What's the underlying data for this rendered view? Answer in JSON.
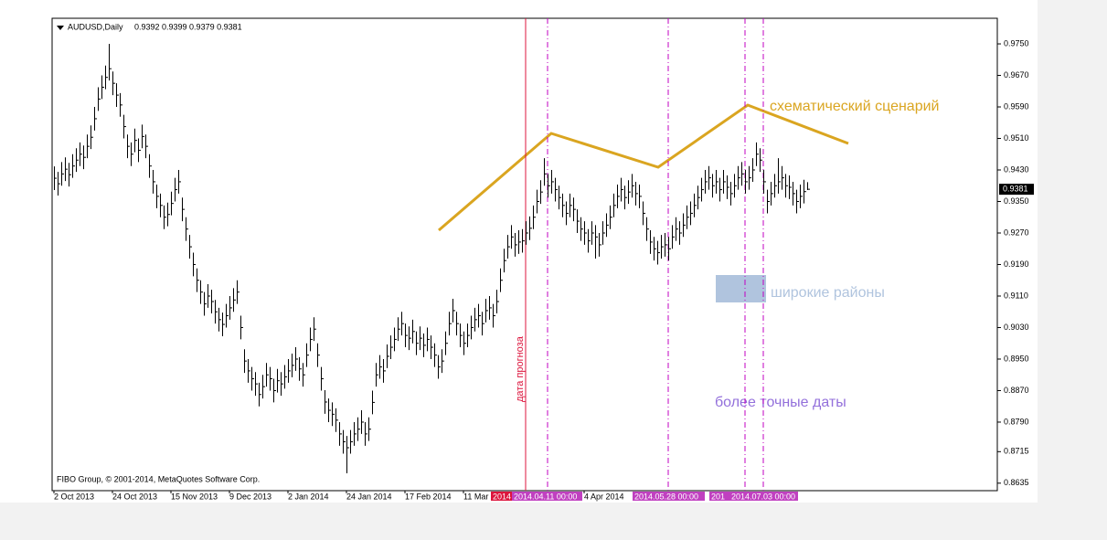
{
  "chart_data": {
    "type": "ohlc",
    "symbol": "AUDUSD,Daily",
    "quote": "0.9392 0.9399 0.9379 0.9381",
    "copyright": "FIBO Group, © 2001-2014, MetaQuotes Software Corp.",
    "annotations": {
      "scenario": "схематический сценарий",
      "zones": "широкие районы",
      "dates": "более точные даты",
      "forecast": "дата прогноза"
    },
    "date_tags": [
      "2014",
      "2014.04.11 00:00",
      "2014.05.28 00:00",
      "201",
      "2014.07.03 00:00"
    ],
    "color": "#000000",
    "ylim": [
      0.8616,
      0.9815
    ],
    "yticks": [
      {
        "value": 0.975,
        "label": "0.9750"
      },
      {
        "value": 0.967,
        "label": "0.9670"
      },
      {
        "value": 0.959,
        "label": "0.9590"
      },
      {
        "value": 0.951,
        "label": "0.9510"
      },
      {
        "value": 0.943,
        "label": "0.9430"
      },
      {
        "value": 0.935,
        "label": "0.9350"
      },
      {
        "value": 0.927,
        "label": "0.9270"
      },
      {
        "value": 0.919,
        "label": "0.9190"
      },
      {
        "value": 0.911,
        "label": "0.9110"
      },
      {
        "value": 0.903,
        "label": "0.9030"
      },
      {
        "value": 0.895,
        "label": "0.8950"
      },
      {
        "value": 0.887,
        "label": "0.8870"
      },
      {
        "value": 0.879,
        "label": "0.8790"
      },
      {
        "value": 0.8715,
        "label": "0.8715"
      },
      {
        "value": 0.8635,
        "label": "0.8635"
      }
    ],
    "categories": [
      "2 Oct 2013",
      null,
      null,
      null,
      null,
      null,
      null,
      null,
      null,
      null,
      null,
      null,
      null,
      null,
      null,
      null,
      "24 Oct 2013",
      null,
      null,
      null,
      null,
      null,
      null,
      null,
      null,
      null,
      null,
      null,
      null,
      null,
      null,
      null,
      "15 Nov 2013",
      null,
      null,
      null,
      null,
      null,
      null,
      null,
      null,
      null,
      null,
      null,
      null,
      null,
      null,
      null,
      "9 Dec 2013",
      null,
      null,
      null,
      null,
      null,
      null,
      null,
      null,
      null,
      null,
      null,
      null,
      null,
      null,
      null,
      "2 Jan 2014",
      null,
      null,
      null,
      null,
      null,
      null,
      null,
      null,
      null,
      null,
      null,
      null,
      null,
      null,
      null,
      "24 Jan 2014",
      null,
      null,
      null,
      null,
      null,
      null,
      null,
      null,
      null,
      null,
      null,
      null,
      null,
      null,
      null,
      "17 Feb 2014",
      null,
      null,
      null,
      null,
      null,
      null,
      null,
      null,
      null,
      null,
      null,
      null,
      null,
      null,
      null,
      "11 Mar",
      null,
      null,
      null,
      null,
      null,
      null,
      null,
      null,
      null,
      null,
      null,
      null,
      null,
      null,
      null,
      null,
      null,
      null,
      null,
      null,
      null,
      null,
      null,
      null,
      null,
      null,
      null,
      null,
      null,
      null,
      null,
      null,
      "4 Apr 2014",
      null,
      null,
      null,
      null,
      null,
      null,
      null,
      null,
      null,
      null,
      null,
      null,
      null,
      null,
      null,
      null,
      null,
      null,
      null,
      null,
      null,
      null,
      null,
      null,
      null,
      null,
      null,
      null,
      null,
      null,
      null,
      null,
      null,
      null,
      null,
      null,
      null,
      null,
      null,
      null,
      null,
      null,
      null,
      null,
      null,
      null,
      null,
      null,
      null,
      null,
      null,
      null,
      null,
      null,
      null,
      null,
      null,
      null,
      null,
      null,
      null
    ],
    "close": [
      0.9409,
      0.9395,
      0.942,
      0.9432,
      0.9418,
      0.944,
      0.9455,
      0.947,
      0.9462,
      0.949,
      0.9513,
      0.956,
      0.961,
      0.964,
      0.9665,
      0.9687,
      0.965,
      0.962,
      0.9595,
      0.954,
      0.949,
      0.947,
      0.9505,
      0.948,
      0.9515,
      0.949,
      0.944,
      0.94,
      0.9363,
      0.934,
      0.931,
      0.9317,
      0.9345,
      0.938,
      0.94,
      0.933,
      0.928,
      0.9235,
      0.919,
      0.915,
      0.912,
      0.909,
      0.911,
      0.9096,
      0.907,
      0.905,
      0.9038,
      0.906,
      0.908,
      0.91,
      0.912,
      0.903,
      0.8945,
      0.892,
      0.89,
      0.8887,
      0.886,
      0.888,
      0.891,
      0.89,
      0.887,
      0.8895,
      0.8887,
      0.8905,
      0.892,
      0.8934,
      0.895,
      0.8925,
      0.891,
      0.896,
      0.9,
      0.9026,
      0.896,
      0.89,
      0.8841,
      0.882,
      0.881,
      0.8795,
      0.876,
      0.874,
      0.8725,
      0.874,
      0.876,
      0.8772,
      0.879,
      0.876,
      0.8772,
      0.884,
      0.891,
      0.893,
      0.892,
      0.8957,
      0.898,
      0.9,
      0.9026,
      0.904,
      0.901,
      0.9003,
      0.902,
      0.899,
      0.9003,
      0.8985,
      0.9,
      0.898,
      0.896,
      0.893,
      0.8945,
      0.899,
      0.904,
      0.9073,
      0.904,
      0.901,
      0.899,
      0.901,
      0.903,
      0.905,
      0.906,
      0.904,
      0.9073,
      0.908,
      0.906,
      0.9096,
      0.915,
      0.92,
      0.9235,
      0.926,
      0.924,
      0.9247,
      0.925,
      0.927,
      0.9282,
      0.931,
      0.935,
      0.9374,
      0.942,
      0.939,
      0.94,
      0.938,
      0.936,
      0.934,
      0.932,
      0.934,
      0.933,
      0.93,
      0.928,
      0.927,
      0.925,
      0.927,
      0.926,
      0.924,
      0.927,
      0.929,
      0.931,
      0.934,
      0.9363,
      0.938,
      0.936,
      0.9374,
      0.939,
      0.937,
      0.9363,
      0.932,
      0.928,
      0.9247,
      0.923,
      0.922,
      0.9235,
      0.924,
      0.923,
      0.926,
      0.928,
      0.927,
      0.929,
      0.931,
      0.932,
      0.934,
      0.936,
      0.938,
      0.94,
      0.941,
      0.939,
      0.94,
      0.938,
      0.94,
      0.9386,
      0.937,
      0.939,
      0.941,
      0.942,
      0.94,
      0.941,
      0.943,
      0.947,
      0.9455,
      0.94,
      0.935,
      0.937,
      0.939,
      0.94,
      0.941,
      0.939,
      0.9386,
      0.937,
      0.935,
      0.9363,
      0.9375,
      0.9381
    ],
    "high": [
      0.9439,
      0.9425,
      0.945,
      0.9462,
      0.9448,
      0.947,
      0.9485,
      0.95,
      0.9492,
      0.952,
      0.9543,
      0.959,
      0.964,
      0.967,
      0.9695,
      0.975,
      0.968,
      0.965,
      0.9625,
      0.957,
      0.952,
      0.95,
      0.9535,
      0.951,
      0.9545,
      0.952,
      0.947,
      0.943,
      0.9393,
      0.937,
      0.934,
      0.9347,
      0.9375,
      0.941,
      0.943,
      0.936,
      0.931,
      0.9265,
      0.922,
      0.918,
      0.915,
      0.912,
      0.914,
      0.9126,
      0.91,
      0.908,
      0.9068,
      0.909,
      0.911,
      0.913,
      0.915,
      0.906,
      0.8975,
      0.895,
      0.893,
      0.8917,
      0.889,
      0.891,
      0.894,
      0.893,
      0.89,
      0.8925,
      0.8917,
      0.8935,
      0.895,
      0.8964,
      0.898,
      0.8955,
      0.894,
      0.899,
      0.903,
      0.9056,
      0.899,
      0.893,
      0.8871,
      0.885,
      0.884,
      0.8825,
      0.879,
      0.877,
      0.8755,
      0.877,
      0.879,
      0.8802,
      0.882,
      0.879,
      0.8802,
      0.887,
      0.894,
      0.896,
      0.895,
      0.8987,
      0.901,
      0.903,
      0.9056,
      0.907,
      0.904,
      0.9033,
      0.905,
      0.902,
      0.9033,
      0.9015,
      0.903,
      0.901,
      0.899,
      0.896,
      0.8975,
      0.902,
      0.907,
      0.9103,
      0.907,
      0.904,
      0.902,
      0.904,
      0.906,
      0.908,
      0.909,
      0.907,
      0.9103,
      0.911,
      0.909,
      0.9126,
      0.918,
      0.923,
      0.9265,
      0.929,
      0.927,
      0.9277,
      0.928,
      0.93,
      0.9312,
      0.934,
      0.938,
      0.9404,
      0.946,
      0.942,
      0.943,
      0.941,
      0.939,
      0.937,
      0.935,
      0.937,
      0.936,
      0.933,
      0.931,
      0.93,
      0.928,
      0.93,
      0.929,
      0.927,
      0.93,
      0.932,
      0.934,
      0.937,
      0.9393,
      0.941,
      0.939,
      0.9404,
      0.942,
      0.94,
      0.9393,
      0.935,
      0.931,
      0.9277,
      0.926,
      0.925,
      0.9265,
      0.927,
      0.926,
      0.929,
      0.931,
      0.93,
      0.932,
      0.934,
      0.935,
      0.937,
      0.939,
      0.941,
      0.943,
      0.944,
      0.942,
      0.943,
      0.941,
      0.943,
      0.9416,
      0.94,
      0.942,
      0.944,
      0.945,
      0.943,
      0.944,
      0.946,
      0.95,
      0.9485,
      0.943,
      0.938,
      0.94,
      0.942,
      0.946,
      0.944,
      0.942,
      0.9416,
      0.94,
      0.938,
      0.9393,
      0.9405,
      0.9399
    ],
    "low": [
      0.9379,
      0.9365,
      0.939,
      0.9402,
      0.9388,
      0.941,
      0.9425,
      0.944,
      0.9432,
      0.946,
      0.9483,
      0.953,
      0.958,
      0.961,
      0.9635,
      0.9657,
      0.962,
      0.959,
      0.9565,
      0.951,
      0.946,
      0.944,
      0.9475,
      0.945,
      0.9485,
      0.946,
      0.941,
      0.937,
      0.9333,
      0.931,
      0.928,
      0.9287,
      0.9315,
      0.935,
      0.937,
      0.93,
      0.925,
      0.9205,
      0.916,
      0.912,
      0.909,
      0.906,
      0.908,
      0.9066,
      0.904,
      0.902,
      0.9008,
      0.903,
      0.905,
      0.907,
      0.909,
      0.9,
      0.8915,
      0.889,
      0.887,
      0.8857,
      0.883,
      0.885,
      0.888,
      0.887,
      0.884,
      0.8865,
      0.8857,
      0.8875,
      0.889,
      0.8904,
      0.892,
      0.8895,
      0.888,
      0.893,
      0.897,
      0.8996,
      0.893,
      0.887,
      0.8811,
      0.879,
      0.878,
      0.8765,
      0.873,
      0.871,
      0.866,
      0.871,
      0.873,
      0.8742,
      0.876,
      0.873,
      0.8742,
      0.881,
      0.888,
      0.89,
      0.889,
      0.8927,
      0.895,
      0.897,
      0.8996,
      0.901,
      0.898,
      0.8973,
      0.899,
      0.896,
      0.8973,
      0.8955,
      0.897,
      0.895,
      0.893,
      0.89,
      0.8915,
      0.896,
      0.901,
      0.9043,
      0.901,
      0.898,
      0.896,
      0.898,
      0.9,
      0.902,
      0.903,
      0.901,
      0.9043,
      0.905,
      0.903,
      0.9066,
      0.912,
      0.917,
      0.9205,
      0.923,
      0.921,
      0.9217,
      0.922,
      0.924,
      0.9252,
      0.928,
      0.932,
      0.9344,
      0.939,
      0.936,
      0.937,
      0.935,
      0.933,
      0.931,
      0.929,
      0.931,
      0.93,
      0.927,
      0.925,
      0.924,
      0.922,
      0.924,
      0.9205,
      0.921,
      0.924,
      0.926,
      0.928,
      0.931,
      0.9333,
      0.935,
      0.933,
      0.9344,
      0.936,
      0.934,
      0.9333,
      0.929,
      0.925,
      0.9217,
      0.92,
      0.919,
      0.9205,
      0.921,
      0.92,
      0.923,
      0.925,
      0.924,
      0.926,
      0.928,
      0.929,
      0.931,
      0.933,
      0.935,
      0.937,
      0.938,
      0.936,
      0.937,
      0.935,
      0.937,
      0.9356,
      0.934,
      0.936,
      0.938,
      0.939,
      0.937,
      0.938,
      0.94,
      0.944,
      0.9425,
      0.937,
      0.932,
      0.934,
      0.936,
      0.937,
      0.938,
      0.936,
      0.9356,
      0.934,
      0.932,
      0.9333,
      0.9345,
      0.9379
    ]
  }
}
